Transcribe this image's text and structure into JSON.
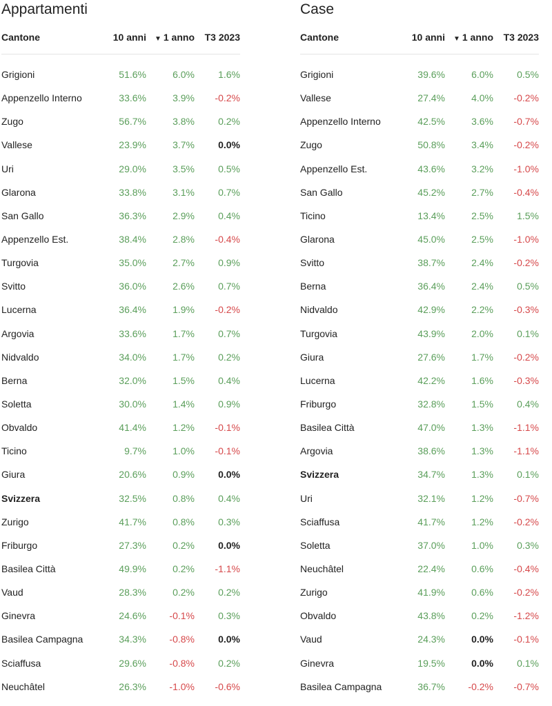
{
  "headers": {
    "col0": "Cantone",
    "col1": "10 anni",
    "col2": "1 anno",
    "col3": "T3 2023"
  },
  "colors": {
    "positive": "#5a9e5a",
    "negative": "#d6484a",
    "neutral": "#222222"
  },
  "chart_data": [
    {
      "type": "table",
      "title": "Appartamenti",
      "columns": [
        "Cantone",
        "10 anni",
        "1 anno",
        "T3 2023"
      ],
      "sorted_by": "1 anno",
      "rows": [
        [
          "Grigioni",
          "51.6%",
          "6.0%",
          "1.6%"
        ],
        [
          "Appenzello Interno",
          "33.6%",
          "3.9%",
          "-0.2%"
        ],
        [
          "Zugo",
          "56.7%",
          "3.8%",
          "0.2%"
        ],
        [
          "Vallese",
          "23.9%",
          "3.7%",
          "0.0%"
        ],
        [
          "Uri",
          "29.0%",
          "3.5%",
          "0.5%"
        ],
        [
          "Glarona",
          "33.8%",
          "3.1%",
          "0.7%"
        ],
        [
          "San Gallo",
          "36.3%",
          "2.9%",
          "0.4%"
        ],
        [
          "Appenzello Est.",
          "38.4%",
          "2.8%",
          "-0.4%"
        ],
        [
          "Turgovia",
          "35.0%",
          "2.7%",
          "0.9%"
        ],
        [
          "Svitto",
          "36.0%",
          "2.6%",
          "0.7%"
        ],
        [
          "Lucerna",
          "36.4%",
          "1.9%",
          "-0.2%"
        ],
        [
          "Argovia",
          "33.6%",
          "1.7%",
          "0.7%"
        ],
        [
          "Nidvaldo",
          "34.0%",
          "1.7%",
          "0.2%"
        ],
        [
          "Berna",
          "32.0%",
          "1.5%",
          "0.4%"
        ],
        [
          "Soletta",
          "30.0%",
          "1.4%",
          "0.9%"
        ],
        [
          "Obvaldo",
          "41.4%",
          "1.2%",
          "-0.1%"
        ],
        [
          "Ticino",
          "9.7%",
          "1.0%",
          "-0.1%"
        ],
        [
          "Giura",
          "20.6%",
          "0.9%",
          "0.0%"
        ],
        [
          "Svizzera",
          "32.5%",
          "0.8%",
          "0.4%"
        ],
        [
          "Zurigo",
          "41.7%",
          "0.8%",
          "0.3%"
        ],
        [
          "Friburgo",
          "27.3%",
          "0.2%",
          "0.0%"
        ],
        [
          "Basilea Città",
          "49.9%",
          "0.2%",
          "-1.1%"
        ],
        [
          "Vaud",
          "28.3%",
          "0.2%",
          "0.2%"
        ],
        [
          "Ginevra",
          "24.6%",
          "-0.1%",
          "0.3%"
        ],
        [
          "Basilea Campagna",
          "34.3%",
          "-0.8%",
          "0.0%"
        ],
        [
          "Sciaffusa",
          "29.6%",
          "-0.8%",
          "0.2%"
        ],
        [
          "Neuchâtel",
          "26.3%",
          "-1.0%",
          "-0.6%"
        ]
      ]
    },
    {
      "type": "table",
      "title": "Case",
      "columns": [
        "Cantone",
        "10 anni",
        "1 anno",
        "T3 2023"
      ],
      "sorted_by": "1 anno",
      "rows": [
        [
          "Grigioni",
          "39.6%",
          "6.0%",
          "0.5%"
        ],
        [
          "Vallese",
          "27.4%",
          "4.0%",
          "-0.2%"
        ],
        [
          "Appenzello Interno",
          "42.5%",
          "3.6%",
          "-0.7%"
        ],
        [
          "Zugo",
          "50.8%",
          "3.4%",
          "-0.2%"
        ],
        [
          "Appenzello Est.",
          "43.6%",
          "3.2%",
          "-1.0%"
        ],
        [
          "San Gallo",
          "45.2%",
          "2.7%",
          "-0.4%"
        ],
        [
          "Ticino",
          "13.4%",
          "2.5%",
          "1.5%"
        ],
        [
          "Glarona",
          "45.0%",
          "2.5%",
          "-1.0%"
        ],
        [
          "Svitto",
          "38.7%",
          "2.4%",
          "-0.2%"
        ],
        [
          "Berna",
          "36.4%",
          "2.4%",
          "0.5%"
        ],
        [
          "Nidvaldo",
          "42.9%",
          "2.2%",
          "-0.3%"
        ],
        [
          "Turgovia",
          "43.9%",
          "2.0%",
          "0.1%"
        ],
        [
          "Giura",
          "27.6%",
          "1.7%",
          "-0.2%"
        ],
        [
          "Lucerna",
          "42.2%",
          "1.6%",
          "-0.3%"
        ],
        [
          "Friburgo",
          "32.8%",
          "1.5%",
          "0.4%"
        ],
        [
          "Basilea Città",
          "47.0%",
          "1.3%",
          "-1.1%"
        ],
        [
          "Argovia",
          "38.6%",
          "1.3%",
          "-1.1%"
        ],
        [
          "Svizzera",
          "34.7%",
          "1.3%",
          "0.1%"
        ],
        [
          "Uri",
          "32.1%",
          "1.2%",
          "-0.7%"
        ],
        [
          "Sciaffusa",
          "41.7%",
          "1.2%",
          "-0.2%"
        ],
        [
          "Soletta",
          "37.0%",
          "1.0%",
          "0.3%"
        ],
        [
          "Neuchâtel",
          "22.4%",
          "0.6%",
          "-0.4%"
        ],
        [
          "Zurigo",
          "41.9%",
          "0.6%",
          "-0.2%"
        ],
        [
          "Obvaldo",
          "43.8%",
          "0.2%",
          "-1.2%"
        ],
        [
          "Vaud",
          "24.3%",
          "0.0%",
          "-0.1%"
        ],
        [
          "Ginevra",
          "19.5%",
          "0.0%",
          "0.1%"
        ],
        [
          "Basilea Campagna",
          "36.7%",
          "-0.2%",
          "-0.7%"
        ]
      ]
    }
  ]
}
